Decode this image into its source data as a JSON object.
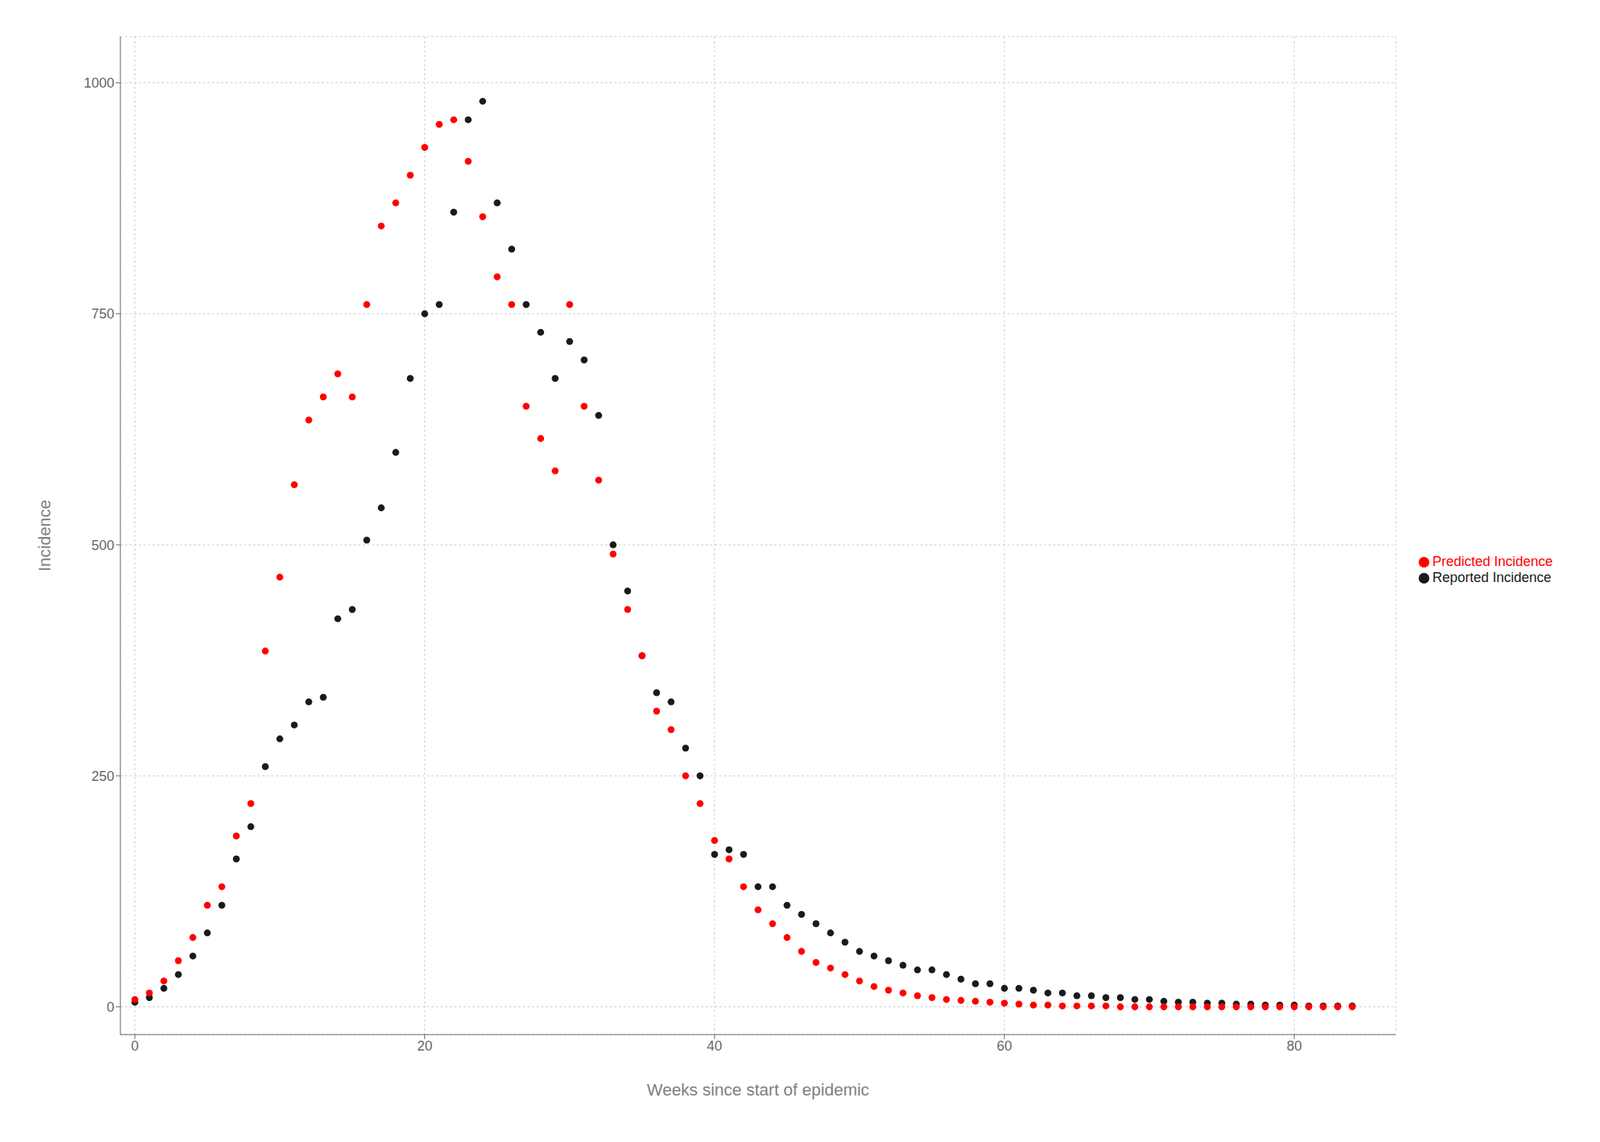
{
  "chart_data": {
    "type": "scatter",
    "xlabel": "Weeks since start of epidemic",
    "ylabel": "Incidence",
    "xlim": [
      -1,
      87
    ],
    "ylim": [
      -30,
      1050
    ],
    "xticks": [
      0,
      20,
      40,
      60,
      80
    ],
    "yticks": [
      0,
      250,
      500,
      750,
      1000
    ],
    "grid": true,
    "legend": "right",
    "x": [
      0,
      1,
      2,
      3,
      4,
      5,
      6,
      7,
      8,
      9,
      10,
      11,
      12,
      13,
      14,
      15,
      16,
      17,
      18,
      19,
      20,
      21,
      22,
      23,
      24,
      25,
      26,
      27,
      28,
      29,
      30,
      31,
      32,
      33,
      34,
      35,
      36,
      37,
      38,
      39,
      40,
      41,
      42,
      43,
      44,
      45,
      46,
      47,
      48,
      49,
      50,
      51,
      52,
      53,
      54,
      55,
      56,
      57,
      58,
      59,
      60,
      61,
      62,
      63,
      64,
      65,
      66,
      67,
      68,
      69,
      70,
      71,
      72,
      73,
      74,
      75,
      76,
      77,
      78,
      79,
      80,
      81,
      82,
      83,
      84
    ],
    "series": [
      {
        "name": "Reported Incidence",
        "color": "#1a1a1a",
        "values": [
          5,
          10,
          20,
          35,
          55,
          80,
          110,
          160,
          195,
          260,
          290,
          305,
          330,
          335,
          420,
          430,
          505,
          540,
          600,
          680,
          750,
          760,
          860,
          960,
          980,
          870,
          820,
          760,
          730,
          680,
          720,
          700,
          640,
          500,
          450,
          380,
          340,
          330,
          280,
          250,
          165,
          170,
          165,
          130,
          130,
          110,
          100,
          90,
          80,
          70,
          60,
          55,
          50,
          45,
          40,
          40,
          35,
          30,
          25,
          25,
          20,
          20,
          18,
          15,
          15,
          12,
          12,
          10,
          10,
          8,
          8,
          6,
          5,
          5,
          4,
          4,
          3,
          3,
          2,
          2,
          2,
          1,
          1,
          1,
          1
        ]
      },
      {
        "name": "Predicted Incidence",
        "color": "#FF0000",
        "values": [
          8,
          15,
          28,
          50,
          75,
          110,
          130,
          185,
          220,
          385,
          465,
          565,
          635,
          660,
          685,
          660,
          760,
          845,
          870,
          900,
          930,
          955,
          960,
          915,
          855,
          790,
          760,
          650,
          615,
          580,
          760,
          650,
          570,
          490,
          430,
          380,
          320,
          300,
          250,
          220,
          180,
          160,
          130,
          105,
          90,
          75,
          60,
          48,
          42,
          35,
          28,
          22,
          18,
          15,
          12,
          10,
          8,
          7,
          6,
          5,
          4,
          3,
          2,
          2,
          1,
          1,
          1,
          1,
          0,
          0,
          0,
          0,
          0,
          0,
          0,
          0,
          0,
          0,
          0,
          0,
          0,
          0,
          0,
          0,
          0
        ]
      }
    ]
  }
}
